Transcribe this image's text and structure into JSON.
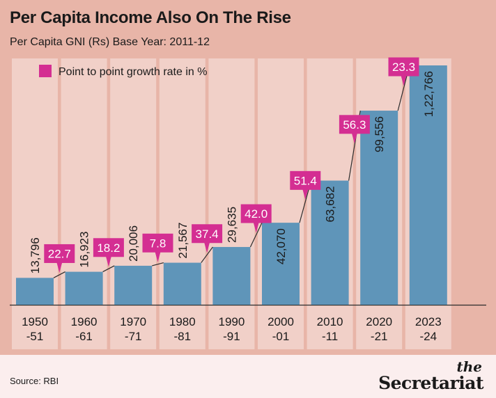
{
  "header": {
    "title": "Per Capita Income Also On The Rise",
    "subtitle": "Per Capita GNI (Rs) Base Year: 2011-12"
  },
  "footer": {
    "source": "Source: RBI",
    "logo_the": "the",
    "logo_name": "Secretariat"
  },
  "colors": {
    "background": "#e8b5a8",
    "column_band": "#f1d0c8",
    "bar": "#5f95b9",
    "growth_box": "#d42e92",
    "footer_bg": "#fbeeee"
  },
  "chart_data": {
    "type": "bar",
    "title": "Per Capita Income Also On The Rise",
    "subtitle": "Per Capita GNI (Rs) Base Year: 2011-12",
    "categories": [
      [
        "1950",
        "-51"
      ],
      [
        "1960",
        "-61"
      ],
      [
        "1970",
        "-71"
      ],
      [
        "1980",
        "-81"
      ],
      [
        "1990",
        "-91"
      ],
      [
        "2000",
        "-01"
      ],
      [
        "2010",
        "-11"
      ],
      [
        "2020",
        "-21"
      ],
      [
        "2023",
        "-24"
      ]
    ],
    "series": [
      {
        "values": [
          13796,
          16923,
          20006,
          21567,
          29635,
          42070,
          63682,
          99556,
          122766
        ],
        "labels": [
          "13,796",
          "16,923",
          "20,006",
          "21,567",
          "29,635",
          "42,070",
          "63,682",
          "99,556",
          "1,22,766"
        ]
      }
    ],
    "growth": {
      "legend": "Point to point growth rate in %",
      "values": [
        22.7,
        18.2,
        7.8,
        37.4,
        42.0,
        51.4,
        56.3,
        23.3
      ],
      "labels": [
        "22.7",
        "18.2",
        "7.8",
        "37.4",
        "42.0",
        "51.4",
        "56.3",
        "23.3"
      ]
    },
    "legend_position": "top-left",
    "grid": false
  }
}
